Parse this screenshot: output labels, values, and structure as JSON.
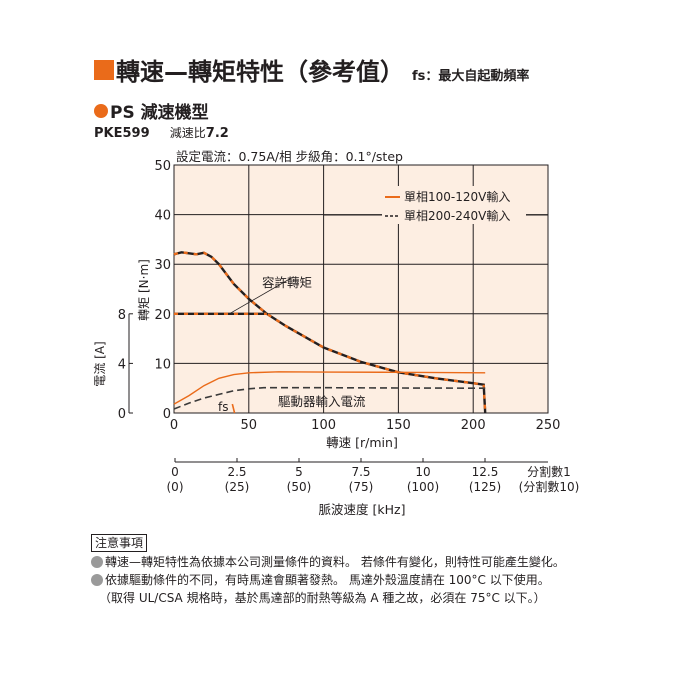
{
  "header": {
    "title": "轉速—轉矩特性（參考值）",
    "subtitle": "fs：最大自起動頻率",
    "accent_color": "#ea6b1a"
  },
  "section": {
    "title": "PS 減速機型",
    "model": "PKE599",
    "ratio_label": "減速比",
    "ratio_value": "7.2"
  },
  "chart_data": {
    "type": "line",
    "title": "設定電流：0.75A/相  步級角：0.1°/step",
    "xlabel": "轉速 [r/min]",
    "ylabel": "轉矩 [N·m]",
    "y2label": "電流 [A]",
    "xlim": [
      0,
      250
    ],
    "ylim": [
      0,
      50
    ],
    "y2lim": [
      0,
      8
    ],
    "x_ticks": [
      0,
      50,
      100,
      150,
      200,
      250
    ],
    "y_ticks": [
      0,
      10,
      20,
      30,
      40,
      50
    ],
    "y2_ticks": [
      0,
      4,
      8
    ],
    "grid": true,
    "plot_bg": "#fdeee2",
    "legend": {
      "position": "upper right",
      "entries": [
        {
          "label": "單相100-120V輸入",
          "style": "solid",
          "color": "#ea6b1a"
        },
        {
          "label": "單相200-240V輸入",
          "style": "dashed",
          "color": "#231f20"
        }
      ]
    },
    "annotations": [
      {
        "text": "容許轉矩",
        "x": 62,
        "y": 20
      },
      {
        "text": "驅動器輸入電流",
        "x": 120,
        "y": 2
      },
      {
        "text": "fs",
        "x": 40,
        "y": 1
      }
    ],
    "series": [
      {
        "name": "轉矩 單相100-120V輸入",
        "axis": "torque",
        "x": [
          0,
          5,
          10,
          15,
          20,
          25,
          30,
          40,
          50,
          62,
          75,
          100,
          125,
          150,
          175,
          200,
          207,
          208
        ],
        "values": [
          32,
          32.4,
          32.2,
          32,
          32.3,
          31.5,
          30,
          26,
          23,
          20,
          17.5,
          13.2,
          10.3,
          8.2,
          7,
          6,
          5.7,
          0
        ]
      },
      {
        "name": "轉矩 單相200-240V輸入",
        "axis": "torque",
        "x": [
          0,
          5,
          10,
          15,
          20,
          25,
          30,
          40,
          50,
          62,
          75,
          100,
          125,
          150,
          175,
          200,
          207,
          208
        ],
        "values": [
          32,
          32.4,
          32.2,
          32,
          32.3,
          31.5,
          30,
          26,
          23,
          20,
          17.5,
          13.2,
          10.3,
          8.2,
          7,
          6,
          5.7,
          0
        ]
      },
      {
        "name": "容許轉矩",
        "axis": "torque",
        "x": [
          0,
          62
        ],
        "values": [
          20,
          20
        ]
      },
      {
        "name": "驅動器輸入電流 單相100-120V輸入",
        "axis": "current",
        "x": [
          0,
          10,
          20,
          30,
          40,
          50,
          70,
          100,
          150,
          208
        ],
        "values": [
          0.72,
          1.4,
          2.2,
          2.8,
          3.1,
          3.24,
          3.32,
          3.3,
          3.28,
          3.24
        ]
      },
      {
        "name": "驅動器輸入電流 單相200-240V輸入",
        "axis": "current",
        "x": [
          0,
          10,
          20,
          30,
          40,
          50,
          60,
          100,
          150,
          208
        ],
        "values": [
          0.32,
          0.8,
          1.2,
          1.5,
          1.8,
          1.95,
          2.04,
          2.04,
          2.02,
          2.0
        ]
      }
    ],
    "secondary_x_axis": {
      "label": "脈波速度 [kHz]",
      "ticks": [
        "0",
        "2.5",
        "5",
        "7.5",
        "10",
        "12.5"
      ],
      "ticks_alt": [
        "(0)",
        "(25)",
        "(50)",
        "(75)",
        "(100)",
        "(125)"
      ],
      "end_label": "分割數1",
      "end_label_alt": "(分割數10)"
    }
  },
  "notes": {
    "title": "注意事項",
    "items": [
      "轉速—轉矩特性為依據本公司測量條件的資料。 若條件有變化，則特性可能產生變化。",
      "依據驅動條件的不同，有時馬達會顯著發熱。 馬達外殼溫度請在 100°C 以下使用。"
    ],
    "sub_item": "（取得 UL/CSA 規格時，基於馬達部的耐熱等級為 A 種之故，必須在 75°C 以下。）"
  }
}
